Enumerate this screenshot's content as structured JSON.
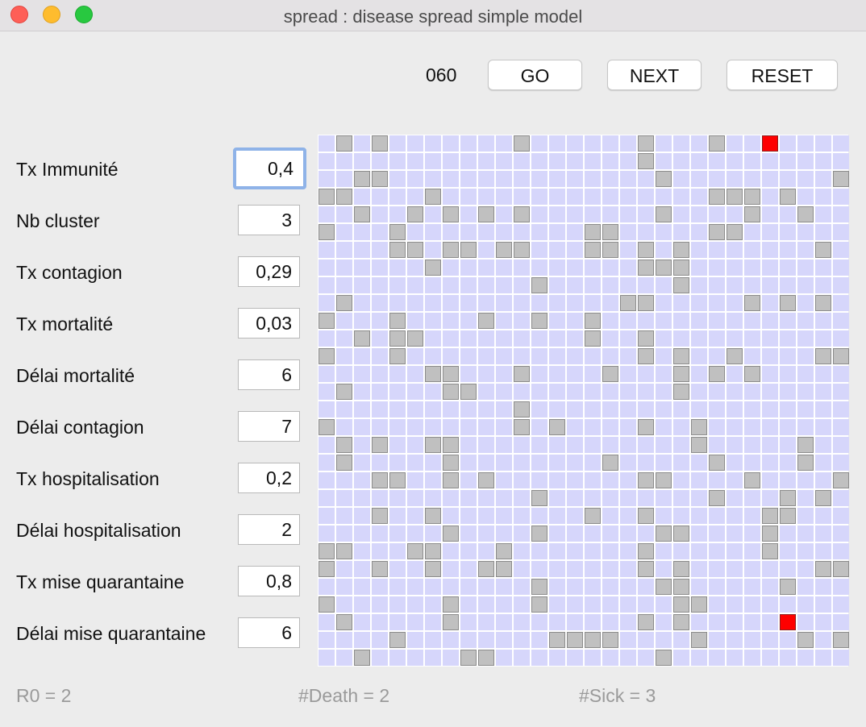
{
  "window": {
    "title": "spread : disease spread simple model"
  },
  "controls": {
    "counter": "060",
    "go_label": "GO",
    "next_label": "NEXT",
    "reset_label": "RESET"
  },
  "params": [
    {
      "label": "Tx Immunité",
      "value": "0,4"
    },
    {
      "label": "Nb cluster",
      "value": "3"
    },
    {
      "label": "Tx contagion",
      "value": "0,29"
    },
    {
      "label": "Tx mortalité",
      "value": "0,03"
    },
    {
      "label": "Délai mortalité",
      "value": "6"
    },
    {
      "label": "Délai contagion",
      "value": "7"
    },
    {
      "label": "Tx hospitalisation",
      "value": "0,2"
    },
    {
      "label": "Délai hospitalisation",
      "value": "2"
    },
    {
      "label": "Tx mise quarantaine",
      "value": "0,8"
    },
    {
      "label": "Délai mise quarantaine",
      "value": "6"
    }
  ],
  "grid": {
    "rows": 30,
    "cols": 30,
    "colors": {
      "healthy": "#d6d6fb",
      "immune": "#c0c0c0",
      "sick": "#fe0000"
    },
    "legend": "0 = healthy, 1 = immune (gray), 2 = sick (red)",
    "cells": [
      "010100000001000000100010020000",
      "000000500000000000100000000000",
      "001100000000000000010000000001",
      "110000100000000000000011101000",
      "001001010101000000010000100100",
      "100010000000000110000011000000",
      "000011011011000110101000000010",
      "000000100000000000111000000000",
      "000000000000100000001000000000",
      "010000000000000001100000101010",
      "100010000100100100000000000000",
      "001011000000000100100000000000",
      "100010000000000000101001000011",
      "000000110001000010001010100000",
      "010000011000000000001000000000",
      "000000000001000000000000000000",
      "100000000001010000100100000000",
      "010100110000000000000100000100",
      "010000010000000010000010000100",
      "000110010100000000110000100001",
      "000000000000100000000010001010",
      "000100100000000100100000011000",
      "000000010000100000011000010000",
      "110001100010000000100000010000",
      "100100100110000000101000000011",
      "000000000000100000011000001000",
      "100000010000100000001100000000",
      "010000010000000000101000002000",
      "000010000000011110000100000101",
      "001000001100000000010000000000"
    ]
  },
  "status": {
    "r0": "R0 = 2",
    "death": "#Death = 2",
    "sick": "#Sick = 3"
  }
}
